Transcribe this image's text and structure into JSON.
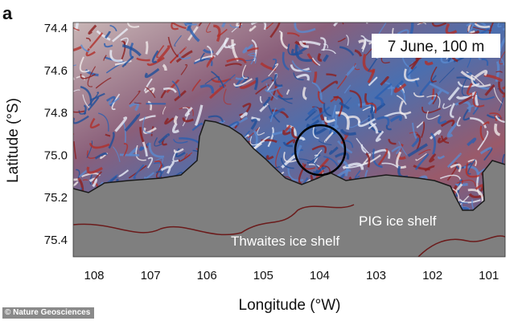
{
  "panel_label": "a",
  "annotation": "7 June, 100 m",
  "labels": {
    "thwaites": "Thwaites ice shelf",
    "pig": "PIG ice shelf"
  },
  "x_axis": {
    "label": "Longitude (°W)",
    "ticks": [
      "108",
      "107",
      "106",
      "105",
      "104",
      "103",
      "102",
      "101"
    ],
    "tick_values": [
      108,
      107,
      106,
      105,
      104,
      103,
      102,
      101
    ]
  },
  "y_axis": {
    "label": "Latitude (°S)",
    "ticks": [
      "74.4",
      "74.6",
      "74.8",
      "75.0",
      "75.2",
      "75.4"
    ],
    "tick_values": [
      74.4,
      74.6,
      74.8,
      75.0,
      75.2,
      75.4
    ]
  },
  "credit": "© Nature Geosciences",
  "colors": {
    "land": "#7f7f7f",
    "positive": "#b0302a",
    "negative": "#2a5fb0",
    "coast": "#6b1a1a",
    "highlight_circle": "#000000"
  },
  "highlight": {
    "shape": "circle",
    "lon": 104.0,
    "lat": 74.98
  }
}
